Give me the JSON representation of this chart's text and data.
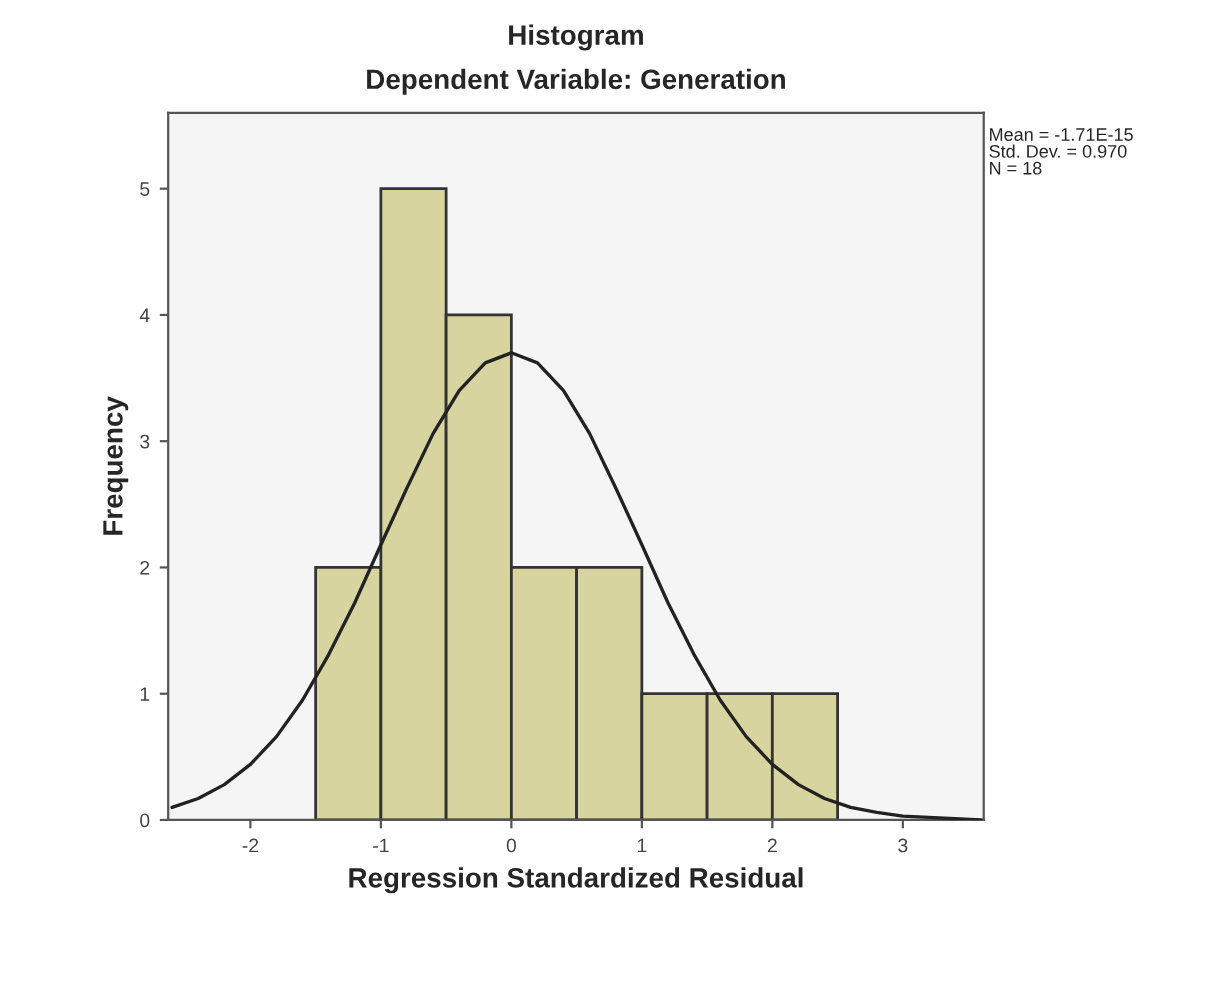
{
  "chart_data": {
    "type": "histogram",
    "title": "Histogram",
    "subtitle": "Dependent Variable: Generation",
    "xlabel": "Regression Standardized Residual",
    "ylabel": "Frequency",
    "bins": [
      -1.5,
      -1.0,
      -0.5,
      0.0,
      0.5,
      1.0,
      1.5,
      2.0,
      2.5
    ],
    "values": [
      2,
      5,
      4,
      2,
      2,
      1,
      1,
      1
    ],
    "color": "#d8d4a0",
    "series": [
      {
        "type": "line",
        "color": "#222222",
        "x": [
          -2.6,
          -2.4,
          -2.2,
          -2.0,
          -1.8,
          -1.6,
          -1.4,
          -1.2,
          -1.0,
          -0.8,
          -0.6,
          -0.4,
          -0.2,
          0.0,
          0.2,
          0.4,
          0.6,
          0.8,
          1.0,
          1.2,
          1.4,
          1.6,
          1.8,
          2.0,
          2.2,
          2.4,
          2.6,
          2.8,
          3.0,
          3.2,
          3.4,
          3.6
        ],
        "values": [
          0.1,
          0.17,
          0.28,
          0.44,
          0.66,
          0.95,
          1.31,
          1.72,
          2.18,
          2.63,
          3.06,
          3.4,
          3.62,
          3.7,
          3.62,
          3.4,
          3.06,
          2.63,
          2.18,
          1.72,
          1.31,
          0.95,
          0.66,
          0.44,
          0.28,
          0.17,
          0.1,
          0.06,
          0.03,
          0.02,
          0.01,
          0.0
        ]
      }
    ],
    "xlim": [
      -2.63,
      3.62
    ],
    "ylim": [
      0,
      5.6
    ],
    "xticks": [
      -2,
      -1,
      0,
      1,
      2,
      3
    ],
    "yticks": [
      0,
      1,
      2,
      3,
      4,
      5
    ],
    "annotations": [
      "Mean = -1.71E-15\nStd. Dev. = 0.970\nN = 18"
    ],
    "grid": false,
    "legend": false
  }
}
